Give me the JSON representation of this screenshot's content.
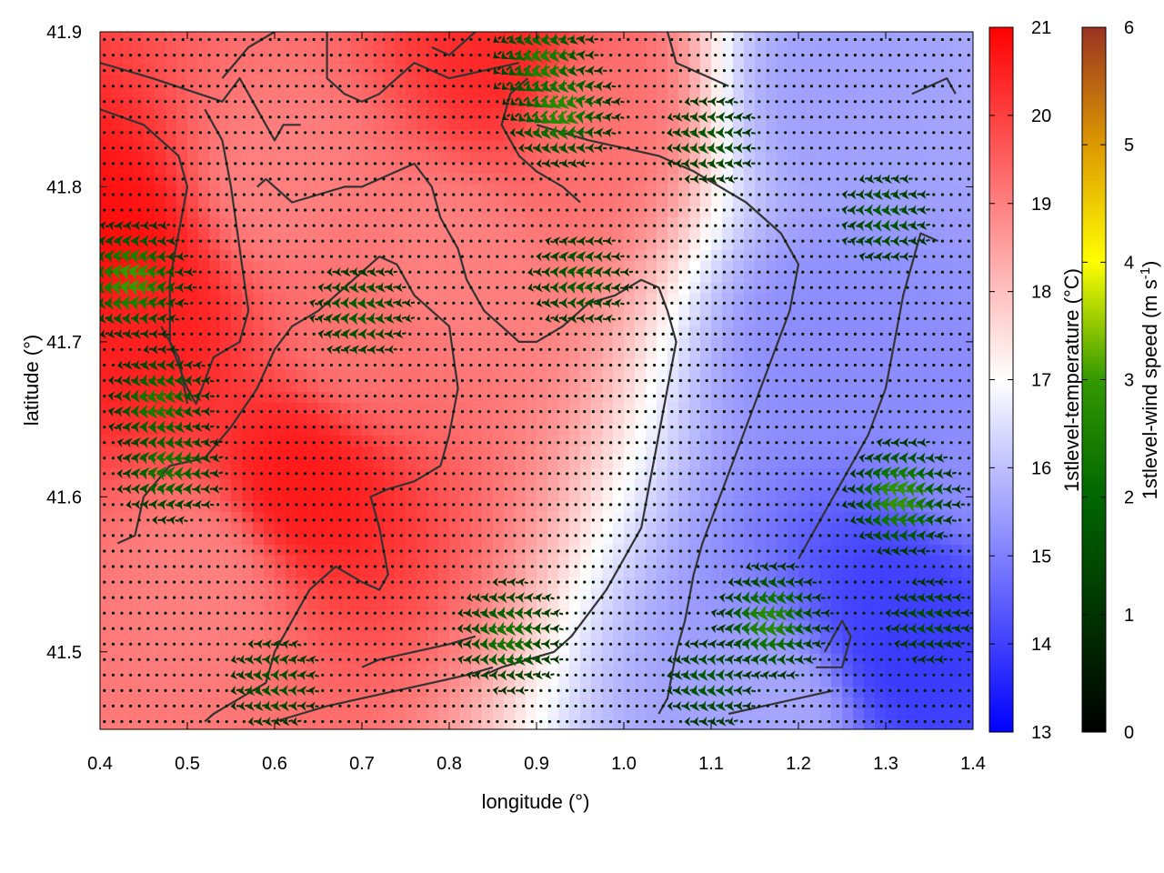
{
  "chart_data": {
    "type": "heatmap",
    "title": "",
    "xlabel": "longitude (°)",
    "ylabel": "latitude (°)",
    "xlim": [
      0.4,
      1.4
    ],
    "ylim": [
      41.45,
      41.9
    ],
    "x_ticks": [
      "0.4",
      "0.5",
      "0.6",
      "0.7",
      "0.8",
      "0.9",
      "1.0",
      "1.1",
      "1.2",
      "1.3",
      "1.4"
    ],
    "y_ticks": [
      "41.5",
      "41.6",
      "41.7",
      "41.8",
      "41.9"
    ],
    "temperature": {
      "label": "1stlevel-temperature (°C)",
      "range": [
        13,
        21
      ],
      "ticks": [
        "13",
        "14",
        "15",
        "16",
        "17",
        "18",
        "19",
        "20",
        "21"
      ],
      "colors": [
        "#0000ff",
        "#ffffff",
        "#ff0000"
      ],
      "hotspots": [
        {
          "lon": 0.41,
          "lat": 41.76,
          "value": 20.8
        },
        {
          "lon": 0.45,
          "lat": 41.72,
          "value": 20.5
        },
        {
          "lon": 0.63,
          "lat": 41.61,
          "value": 20.6
        },
        {
          "lon": 0.87,
          "lat": 41.88,
          "value": 20.4
        },
        {
          "lon": 0.6,
          "lat": 41.8,
          "value": 19.0
        },
        {
          "lon": 0.7,
          "lat": 41.7,
          "value": 19.2
        },
        {
          "lon": 0.8,
          "lat": 41.75,
          "value": 19.0
        },
        {
          "lon": 0.52,
          "lat": 41.55,
          "value": 19.0
        },
        {
          "lon": 0.95,
          "lat": 41.85,
          "value": 19.2
        },
        {
          "lon": 1.32,
          "lat": 41.53,
          "value": 14.0
        },
        {
          "lon": 1.33,
          "lat": 41.5,
          "value": 13.9
        },
        {
          "lon": 1.25,
          "lat": 41.7,
          "value": 15.2
        },
        {
          "lon": 1.25,
          "lat": 41.86,
          "value": 15.5
        },
        {
          "lon": 1.18,
          "lat": 41.46,
          "value": 15.6
        },
        {
          "lon": 1.4,
          "lat": 41.62,
          "value": 15.2
        }
      ],
      "base_value": 17.2
    },
    "wind": {
      "label": "1stlevel-wind speed (m s-1)",
      "label_base": "1stlevel-wind speed (m s",
      "label_exp": "-1",
      "label_close": ")",
      "range": [
        0,
        6
      ],
      "ticks": [
        "0",
        "1",
        "2",
        "3",
        "4",
        "5",
        "6"
      ],
      "colors": [
        "#000000",
        "#006600",
        "#339900",
        "#ffff00",
        "#dd9900",
        "#993322"
      ],
      "direction": "westward",
      "grid_step_lon": 0.01,
      "grid_step_lat": 0.01,
      "strong_zones": [
        {
          "lon": 0.44,
          "lat": 41.74,
          "speed": 3.1
        },
        {
          "lon": 0.47,
          "lat": 41.66,
          "speed": 2.5
        },
        {
          "lon": 0.48,
          "lat": 41.62,
          "speed": 2.4
        },
        {
          "lon": 0.93,
          "lat": 41.85,
          "speed": 2.8
        },
        {
          "lon": 0.91,
          "lat": 41.88,
          "speed": 2.6
        },
        {
          "lon": 1.17,
          "lat": 41.52,
          "speed": 2.8
        },
        {
          "lon": 1.32,
          "lat": 41.6,
          "speed": 3.0
        },
        {
          "lon": 0.87,
          "lat": 41.51,
          "speed": 2.4
        },
        {
          "lon": 0.7,
          "lat": 41.72,
          "speed": 1.9
        },
        {
          "lon": 0.95,
          "lat": 41.74,
          "speed": 1.9
        },
        {
          "lon": 1.1,
          "lat": 41.83,
          "speed": 1.8
        },
        {
          "lon": 1.3,
          "lat": 41.78,
          "speed": 1.8
        },
        {
          "lon": 0.6,
          "lat": 41.48,
          "speed": 1.7
        },
        {
          "lon": 1.1,
          "lat": 41.48,
          "speed": 1.8
        },
        {
          "lon": 1.35,
          "lat": 41.52,
          "speed": 1.5
        }
      ],
      "base_speed": 0.5
    },
    "contours": [
      [
        [
          0.4,
          41.88
        ],
        [
          0.46,
          41.87
        ],
        [
          0.54,
          41.855
        ],
        [
          0.56,
          41.87
        ],
        [
          0.58,
          41.85
        ],
        [
          0.6,
          41.83
        ],
        [
          0.61,
          41.84
        ],
        [
          0.63,
          41.84
        ]
      ],
      [
        [
          0.4,
          41.85
        ],
        [
          0.45,
          41.84
        ],
        [
          0.49,
          41.82
        ],
        [
          0.5,
          41.8
        ],
        [
          0.49,
          41.77
        ],
        [
          0.48,
          41.74
        ],
        [
          0.48,
          41.7
        ],
        [
          0.5,
          41.67
        ],
        [
          0.51,
          41.66
        ],
        [
          0.53,
          41.69
        ],
        [
          0.56,
          41.7
        ],
        [
          0.57,
          41.72
        ],
        [
          0.56,
          41.76
        ],
        [
          0.55,
          41.8
        ],
        [
          0.54,
          41.83
        ],
        [
          0.52,
          41.85
        ]
      ],
      [
        [
          0.54,
          41.87
        ],
        [
          0.57,
          41.89
        ],
        [
          0.6,
          41.9
        ]
      ],
      [
        [
          0.66,
          41.9
        ],
        [
          0.66,
          41.87
        ],
        [
          0.68,
          41.86
        ],
        [
          0.7,
          41.855
        ],
        [
          0.72,
          41.86
        ],
        [
          0.74,
          41.87
        ],
        [
          0.76,
          41.88
        ],
        [
          0.8,
          41.87
        ],
        [
          0.84,
          41.875
        ],
        [
          0.88,
          41.88
        ]
      ],
      [
        [
          0.78,
          41.89
        ],
        [
          0.8,
          41.885
        ],
        [
          0.83,
          41.9
        ]
      ],
      [
        [
          0.47,
          41.71
        ],
        [
          0.49,
          41.69
        ],
        [
          0.5,
          41.66
        ]
      ],
      [
        [
          0.42,
          41.57
        ],
        [
          0.44,
          41.575
        ],
        [
          0.45,
          41.6
        ],
        [
          0.48,
          41.62
        ],
        [
          0.52,
          41.625
        ],
        [
          0.55,
          41.645
        ],
        [
          0.58,
          41.67
        ],
        [
          0.6,
          41.695
        ],
        [
          0.62,
          41.71
        ],
        [
          0.65,
          41.72
        ],
        [
          0.68,
          41.735
        ],
        [
          0.7,
          41.745
        ],
        [
          0.72,
          41.755
        ],
        [
          0.74,
          41.75
        ],
        [
          0.76,
          41.73
        ],
        [
          0.78,
          41.72
        ],
        [
          0.8,
          41.71
        ],
        [
          0.81,
          41.67
        ],
        [
          0.8,
          41.64
        ],
        [
          0.79,
          41.62
        ],
        [
          0.76,
          41.61
        ],
        [
          0.73,
          41.605
        ],
        [
          0.71,
          41.6
        ],
        [
          0.72,
          41.58
        ],
        [
          0.73,
          41.55
        ],
        [
          0.72,
          41.54
        ],
        [
          0.7,
          41.545
        ],
        [
          0.67,
          41.555
        ],
        [
          0.64,
          41.54
        ],
        [
          0.62,
          41.52
        ],
        [
          0.6,
          41.5
        ],
        [
          0.59,
          41.48
        ],
        [
          0.56,
          41.47
        ],
        [
          0.53,
          41.46
        ],
        [
          0.52,
          41.455
        ]
      ],
      [
        [
          0.58,
          41.8
        ],
        [
          0.59,
          41.805
        ],
        [
          0.62,
          41.79
        ],
        [
          0.65,
          41.795
        ],
        [
          0.68,
          41.8
        ],
        [
          0.7,
          41.8
        ],
        [
          0.72,
          41.805
        ],
        [
          0.74,
          41.81
        ],
        [
          0.76,
          41.815
        ],
        [
          0.78,
          41.8
        ],
        [
          0.79,
          41.78
        ],
        [
          0.81,
          41.76
        ],
        [
          0.82,
          41.74
        ],
        [
          0.84,
          41.72
        ],
        [
          0.86,
          41.71
        ],
        [
          0.88,
          41.7
        ],
        [
          0.9,
          41.7
        ],
        [
          0.93,
          41.71
        ],
        [
          0.96,
          41.725
        ],
        [
          0.99,
          41.73
        ],
        [
          1.02,
          41.74
        ],
        [
          1.04,
          41.735
        ],
        [
          1.05,
          41.72
        ],
        [
          1.06,
          41.7
        ],
        [
          1.05,
          41.67
        ],
        [
          1.04,
          41.64
        ],
        [
          1.03,
          41.61
        ],
        [
          1.02,
          41.58
        ],
        [
          1.0,
          41.56
        ],
        [
          0.98,
          41.54
        ],
        [
          0.96,
          41.525
        ],
        [
          0.94,
          41.51
        ],
        [
          0.92,
          41.5
        ],
        [
          0.89,
          41.495
        ],
        [
          0.86,
          41.49
        ],
        [
          0.84,
          41.485
        ]
      ],
      [
        [
          0.9,
          41.84
        ],
        [
          0.93,
          41.835
        ],
        [
          0.96,
          41.83
        ],
        [
          1.0,
          41.825
        ],
        [
          1.04,
          41.82
        ],
        [
          1.08,
          41.81
        ],
        [
          1.11,
          41.8
        ],
        [
          1.14,
          41.79
        ],
        [
          1.16,
          41.78
        ],
        [
          1.18,
          41.77
        ],
        [
          1.2,
          41.75
        ],
        [
          1.19,
          41.72
        ],
        [
          1.17,
          41.69
        ],
        [
          1.15,
          41.66
        ],
        [
          1.13,
          41.63
        ],
        [
          1.11,
          41.6
        ],
        [
          1.09,
          41.57
        ],
        [
          1.08,
          41.55
        ],
        [
          1.07,
          41.52
        ],
        [
          1.06,
          41.5
        ],
        [
          1.05,
          41.47
        ],
        [
          1.04,
          41.46
        ]
      ],
      [
        [
          0.89,
          41.87
        ],
        [
          0.87,
          41.86
        ],
        [
          0.86,
          41.84
        ],
        [
          0.88,
          41.82
        ],
        [
          0.9,
          41.81
        ],
        [
          0.93,
          41.8
        ],
        [
          0.95,
          41.79
        ]
      ],
      [
        [
          0.6,
          41.455
        ],
        [
          0.63,
          41.46
        ],
        [
          0.66,
          41.465
        ],
        [
          0.7,
          41.47
        ],
        [
          0.74,
          41.475
        ],
        [
          0.78,
          41.48
        ],
        [
          0.82,
          41.485
        ],
        [
          0.85,
          41.49
        ]
      ],
      [
        [
          0.7,
          41.49
        ],
        [
          0.72,
          41.495
        ],
        [
          0.76,
          41.5
        ],
        [
          0.8,
          41.505
        ],
        [
          0.83,
          41.51
        ]
      ],
      [
        [
          1.12,
          41.46
        ],
        [
          1.16,
          41.465
        ],
        [
          1.2,
          41.47
        ],
        [
          1.24,
          41.475
        ]
      ],
      [
        [
          1.2,
          41.56
        ],
        [
          1.22,
          41.58
        ],
        [
          1.24,
          41.6
        ],
        [
          1.26,
          41.62
        ],
        [
          1.28,
          41.64
        ],
        [
          1.3,
          41.67
        ],
        [
          1.31,
          41.7
        ],
        [
          1.32,
          41.73
        ],
        [
          1.33,
          41.75
        ],
        [
          1.34,
          41.77
        ],
        [
          1.36,
          41.765
        ]
      ],
      [
        [
          1.23,
          41.5
        ],
        [
          1.25,
          41.52
        ],
        [
          1.26,
          41.51
        ],
        [
          1.25,
          41.49
        ],
        [
          1.22,
          41.49
        ]
      ],
      [
        [
          1.33,
          41.86
        ],
        [
          1.35,
          41.865
        ],
        [
          1.37,
          41.87
        ],
        [
          1.38,
          41.86
        ]
      ],
      [
        [
          1.05,
          41.9
        ],
        [
          1.06,
          41.88
        ],
        [
          1.08,
          41.875
        ],
        [
          1.1,
          41.87
        ],
        [
          1.12,
          41.865
        ]
      ]
    ]
  }
}
